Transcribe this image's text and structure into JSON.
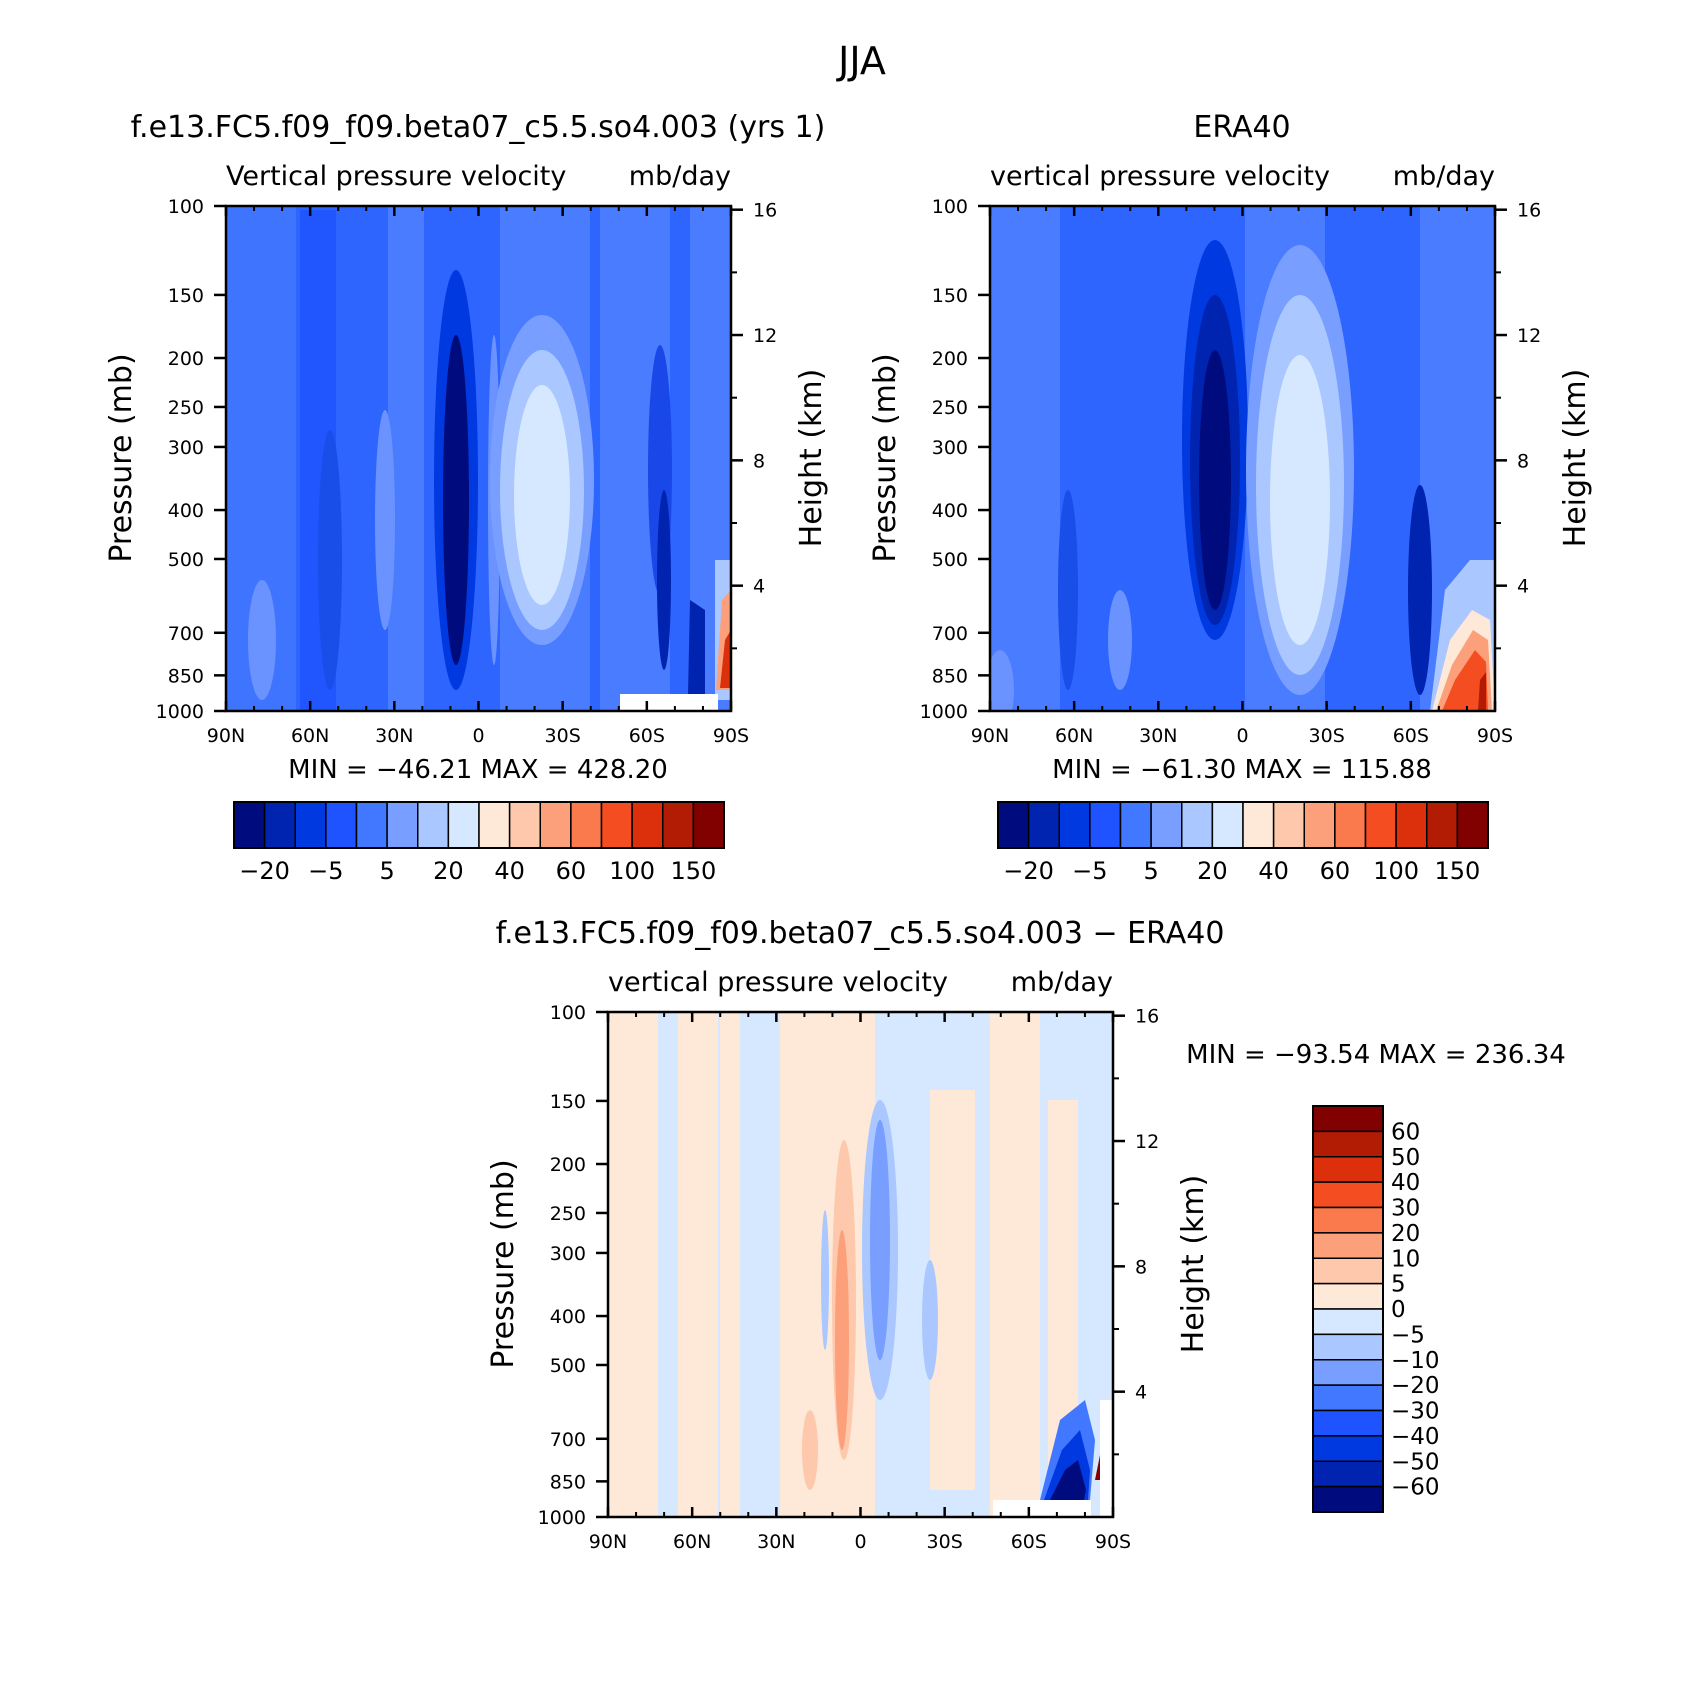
{
  "figure": {
    "title": "JJA"
  },
  "chart_data": [
    {
      "type": "heatmap",
      "title": "f.e13.FC5.f09_f09.beta07_c5.5.so4.003 (yrs 1)",
      "subtitle": "Vertical pressure velocity",
      "units": "mb/day",
      "xlabel": "",
      "ylabel": "Pressure (mb)",
      "y2label": "Height (km)",
      "x_ticks": [
        "90N",
        "60N",
        "30N",
        "0",
        "30S",
        "60S",
        "90S"
      ],
      "y_ticks": [
        100,
        150,
        200,
        250,
        300,
        400,
        500,
        700,
        850,
        1000
      ],
      "y2_ticks": [
        16,
        12,
        8,
        4
      ],
      "ylim": [
        1000,
        100
      ],
      "xlim": [
        90,
        -90
      ],
      "stats_text": "MIN = −46.21   MAX = 428.20",
      "min": -46.21,
      "max": 428.2,
      "colorbar_orientation": "horizontal",
      "colorbar_labels": [
        "−20",
        "−5",
        "5",
        "20",
        "40",
        "60",
        "100",
        "150"
      ]
    },
    {
      "type": "heatmap",
      "title": "ERA40",
      "subtitle": "vertical pressure velocity",
      "units": "mb/day",
      "xlabel": "",
      "ylabel": "Pressure (mb)",
      "y2label": "Height (km)",
      "x_ticks": [
        "90N",
        "60N",
        "30N",
        "0",
        "30S",
        "60S",
        "90S"
      ],
      "y_ticks": [
        100,
        150,
        200,
        250,
        300,
        400,
        500,
        700,
        850,
        1000
      ],
      "y2_ticks": [
        16,
        12,
        8,
        4
      ],
      "ylim": [
        1000,
        100
      ],
      "xlim": [
        90,
        -90
      ],
      "stats_text": "MIN = −61.30   MAX = 115.88",
      "min": -61.3,
      "max": 115.88,
      "colorbar_orientation": "horizontal",
      "colorbar_labels": [
        "−20",
        "−5",
        "5",
        "20",
        "40",
        "60",
        "100",
        "150"
      ]
    },
    {
      "type": "heatmap",
      "title": "f.e13.FC5.f09_f09.beta07_c5.5.so4.003 − ERA40",
      "subtitle": "vertical pressure velocity",
      "units": "mb/day",
      "xlabel": "",
      "ylabel": "Pressure (mb)",
      "y2label": "Height (km)",
      "x_ticks": [
        "90N",
        "60N",
        "30N",
        "0",
        "30S",
        "60S",
        "90S"
      ],
      "y_ticks": [
        100,
        150,
        200,
        250,
        300,
        400,
        500,
        700,
        850,
        1000
      ],
      "y2_ticks": [
        16,
        12,
        8,
        4
      ],
      "ylim": [
        1000,
        100
      ],
      "xlim": [
        90,
        -90
      ],
      "stats_text": "MIN = −93.54   MAX = 236.34",
      "min": -93.54,
      "max": 236.34,
      "colorbar_orientation": "vertical",
      "colorbar_labels": [
        "60",
        "50",
        "40",
        "30",
        "20",
        "10",
        "5",
        "0",
        "−5",
        "−10",
        "−20",
        "−30",
        "−40",
        "−50",
        "−60"
      ]
    }
  ],
  "colors": {
    "cmap_16": [
      "#000c7d",
      "#0024b0",
      "#0039e0",
      "#1f53ff",
      "#4277ff",
      "#789fff",
      "#aac7ff",
      "#d6e8ff",
      "#fee9d8",
      "#fec8ac",
      "#fca07b",
      "#fb7a4d",
      "#f44d22",
      "#dc2f0c",
      "#b21c05",
      "#810000"
    ],
    "cmap_diff_top_to_bottom": [
      "#810000",
      "#b21c05",
      "#dc2f0c",
      "#f44d22",
      "#fb7a4d",
      "#fca07b",
      "#fec8ac",
      "#fee9d8",
      "#d6e8ff",
      "#aac7ff",
      "#789fff",
      "#4277ff",
      "#1f53ff",
      "#0039e0",
      "#0024b0",
      "#000c7d"
    ]
  }
}
